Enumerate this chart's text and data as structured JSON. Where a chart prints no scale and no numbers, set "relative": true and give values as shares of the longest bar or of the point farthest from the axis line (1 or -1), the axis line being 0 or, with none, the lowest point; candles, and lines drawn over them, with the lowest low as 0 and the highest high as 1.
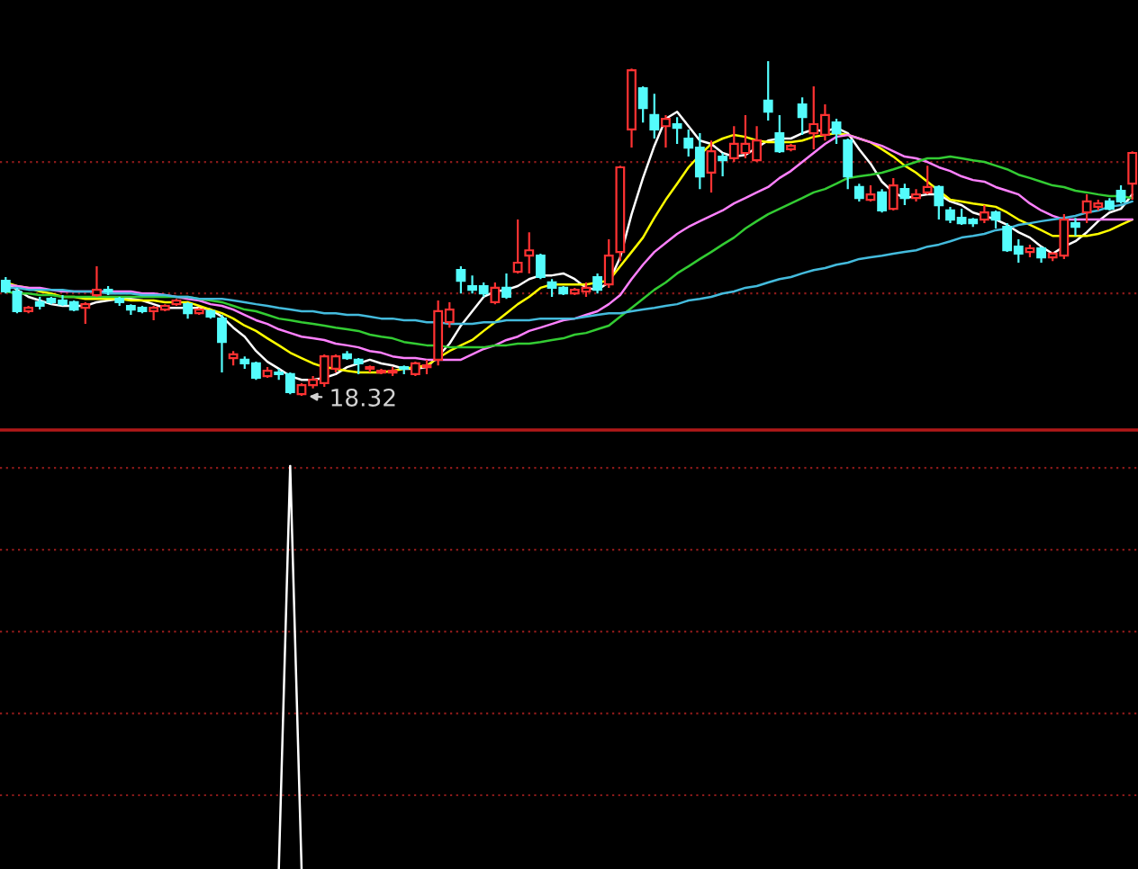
{
  "chart_data": [
    {
      "type": "candlestick",
      "relative": true,
      "categories": [
        null,
        null,
        null,
        null,
        null,
        null,
        null,
        null,
        null,
        null,
        null,
        null,
        null,
        null,
        null,
        null,
        null,
        null,
        null,
        null,
        null,
        null,
        null,
        null,
        null,
        null,
        null,
        null,
        null,
        null,
        null,
        null,
        null,
        null,
        null,
        null,
        null,
        null,
        null,
        null,
        null,
        null,
        null,
        null,
        null,
        null,
        null,
        null,
        null,
        null,
        null,
        null,
        null,
        null,
        null,
        null,
        null,
        null,
        null,
        null,
        null,
        null,
        null,
        null,
        null,
        null,
        null,
        null,
        null,
        null,
        null,
        null,
        null,
        null,
        null,
        null,
        null,
        null,
        null,
        null,
        null,
        null,
        null,
        null,
        null,
        null,
        null,
        null,
        null,
        null,
        null,
        null,
        null,
        null,
        null,
        null,
        null,
        null,
        null,
        null
      ],
      "ohlc": [
        [
          0.344,
          0.355,
          0.306,
          0.312
        ],
        [
          0.312,
          0.323,
          0.247,
          0.253
        ],
        [
          0.253,
          0.269,
          0.247,
          0.263
        ],
        [
          0.28,
          0.296,
          0.258,
          0.269
        ],
        [
          0.29,
          0.296,
          0.274,
          0.28
        ],
        [
          0.285,
          0.301,
          0.269,
          0.274
        ],
        [
          0.28,
          0.285,
          0.253,
          0.258
        ],
        [
          0.263,
          0.28,
          0.215,
          0.274
        ],
        [
          0.301,
          0.387,
          0.296,
          0.317
        ],
        [
          0.317,
          0.328,
          0.301,
          0.312
        ],
        [
          0.29,
          0.296,
          0.269,
          0.28
        ],
        [
          0.269,
          0.274,
          0.242,
          0.258
        ],
        [
          0.263,
          0.269,
          0.247,
          0.253
        ],
        [
          0.253,
          0.269,
          0.226,
          0.263
        ],
        [
          0.258,
          0.274,
          0.253,
          0.269
        ],
        [
          0.274,
          0.29,
          0.269,
          0.285
        ],
        [
          0.274,
          0.28,
          0.231,
          0.247
        ],
        [
          0.247,
          0.263,
          0.242,
          0.258
        ],
        [
          0.253,
          0.258,
          0.231,
          0.237
        ],
        [
          0.231,
          0.242,
          0.07,
          0.161
        ],
        [
          0.113,
          0.134,
          0.091,
          0.124
        ],
        [
          0.108,
          0.118,
          0.081,
          0.097
        ],
        [
          0.097,
          0.102,
          0.048,
          0.054
        ],
        [
          0.059,
          0.086,
          0.054,
          0.075
        ],
        [
          0.07,
          0.081,
          0.048,
          0.065
        ],
        [
          0.065,
          0.07,
          0.005,
          0.011
        ],
        [
          0.005,
          0.038,
          0,
          0.032
        ],
        [
          0.032,
          0.059,
          0.022,
          0.048
        ],
        [
          0.038,
          0.124,
          0.027,
          0.118
        ],
        [
          0.081,
          0.124,
          0.07,
          0.118
        ],
        [
          0.124,
          0.134,
          0.108,
          0.113
        ],
        [
          0.108,
          0.113,
          0.065,
          0.097
        ],
        [
          0.081,
          0.091,
          0.07,
          0.086
        ],
        [
          0.07,
          0.081,
          0.065,
          0.075
        ],
        [
          0.07,
          0.086,
          0.059,
          0.075
        ],
        [
          0.086,
          0.091,
          0.065,
          0.081
        ],
        [
          0.065,
          0.102,
          0.059,
          0.097
        ],
        [
          0.086,
          0.108,
          0.065,
          0.091
        ],
        [
          0.108,
          0.285,
          0.091,
          0.253
        ],
        [
          0.22,
          0.28,
          0.204,
          0.258
        ],
        [
          0.376,
          0.387,
          0.306,
          0.344
        ],
        [
          0.328,
          0.36,
          0.306,
          0.317
        ],
        [
          0.328,
          0.339,
          0.296,
          0.306
        ],
        [
          0.28,
          0.339,
          0.274,
          0.323
        ],
        [
          0.323,
          0.366,
          0.29,
          0.296
        ],
        [
          0.371,
          0.527,
          0.366,
          0.398
        ],
        [
          0.419,
          0.489,
          0.366,
          0.435
        ],
        [
          0.419,
          0.425,
          0.349,
          0.355
        ],
        [
          0.339,
          0.349,
          0.296,
          0.323
        ],
        [
          0.323,
          0.328,
          0.301,
          0.306
        ],
        [
          0.306,
          0.323,
          0.301,
          0.317
        ],
        [
          0.312,
          0.339,
          0.296,
          0.323
        ],
        [
          0.355,
          0.366,
          0.306,
          0.317
        ],
        [
          0.333,
          0.468,
          0.323,
          0.419
        ],
        [
          0.43,
          0.688,
          0.403,
          0.683
        ],
        [
          0.796,
          0.978,
          0.742,
          0.973
        ],
        [
          0.919,
          0.925,
          0.817,
          0.86
        ],
        [
          0.839,
          0.903,
          0.769,
          0.796
        ],
        [
          0.806,
          0.839,
          0.742,
          0.828
        ],
        [
          0.812,
          0.833,
          0.753,
          0.801
        ],
        [
          0.769,
          0.796,
          0.715,
          0.742
        ],
        [
          0.742,
          0.785,
          0.618,
          0.656
        ],
        [
          0.667,
          0.763,
          0.608,
          0.731
        ],
        [
          0.715,
          0.726,
          0.656,
          0.704
        ],
        [
          0.71,
          0.806,
          0.699,
          0.753
        ],
        [
          0.726,
          0.839,
          0.71,
          0.753
        ],
        [
          0.704,
          0.806,
          0.699,
          0.763
        ],
        [
          0.882,
          1,
          0.823,
          0.849
        ],
        [
          0.785,
          0.839,
          0.726,
          0.731
        ],
        [
          0.737,
          0.753,
          0.731,
          0.747
        ],
        [
          0.871,
          0.892,
          0.78,
          0.833
        ],
        [
          0.785,
          0.925,
          0.737,
          0.812
        ],
        [
          0.78,
          0.871,
          0.763,
          0.839
        ],
        [
          0.817,
          0.828,
          0.753,
          0.785
        ],
        [
          0.763,
          0.769,
          0.618,
          0.656
        ],
        [
          0.624,
          0.634,
          0.581,
          0.591
        ],
        [
          0.586,
          0.629,
          0.581,
          0.602
        ],
        [
          0.608,
          0.618,
          0.548,
          0.554
        ],
        [
          0.559,
          0.651,
          0.554,
          0.629
        ],
        [
          0.618,
          0.634,
          0.57,
          0.591
        ],
        [
          0.591,
          0.618,
          0.581,
          0.602
        ],
        [
          0.608,
          0.688,
          0.602,
          0.624
        ],
        [
          0.624,
          0.629,
          0.527,
          0.57
        ],
        [
          0.554,
          0.565,
          0.516,
          0.527
        ],
        [
          0.532,
          0.559,
          0.511,
          0.516
        ],
        [
          0.527,
          0.532,
          0.505,
          0.516
        ],
        [
          0.527,
          0.57,
          0.516,
          0.548
        ],
        [
          0.548,
          0.554,
          0.5,
          0.527
        ],
        [
          0.505,
          0.516,
          0.43,
          0.435
        ],
        [
          0.446,
          0.468,
          0.398,
          0.425
        ],
        [
          0.43,
          0.452,
          0.414,
          0.441
        ],
        [
          0.441,
          0.446,
          0.398,
          0.414
        ],
        [
          0.414,
          0.43,
          0.403,
          0.425
        ],
        [
          0.419,
          0.543,
          0.409,
          0.527
        ],
        [
          0.516,
          0.532,
          0.478,
          0.505
        ],
        [
          0.548,
          0.602,
          0.516,
          0.581
        ],
        [
          0.565,
          0.586,
          0.554,
          0.575
        ],
        [
          0.581,
          0.591,
          0.554,
          0.559
        ],
        [
          0.613,
          0.629,
          0.575,
          0.581
        ],
        [
          0.634,
          0.731,
          0.586,
          0.726
        ]
      ],
      "colors": [
        "#54fcfc",
        "#54fcfc",
        "#ff3232",
        "#54fcfc",
        "#54fcfc",
        "#54fcfc",
        "#54fcfc",
        "#ff3232",
        "#ff3232",
        "#54fcfc",
        "#54fcfc",
        "#54fcfc",
        "#54fcfc",
        "#ff3232",
        "#ff3232",
        "#ff3232",
        "#54fcfc",
        "#ff3232",
        "#54fcfc",
        "#54fcfc",
        "#ff3232",
        "#54fcfc",
        "#54fcfc",
        "#ff3232",
        "#54fcfc",
        "#54fcfc",
        "#ff3232",
        "#ff3232",
        "#ff3232",
        "#ff3232",
        "#54fcfc",
        "#54fcfc",
        "#ff3232",
        "#ff3232",
        "#ff3232",
        "#54fcfc",
        "#ff3232",
        "#ff3232",
        "#ff3232",
        "#ff3232",
        "#54fcfc",
        "#54fcfc",
        "#54fcfc",
        "#ff3232",
        "#54fcfc",
        "#ff3232",
        "#ff3232",
        "#54fcfc",
        "#54fcfc",
        "#54fcfc",
        "#ff3232",
        "#ff3232",
        "#54fcfc",
        "#ff3232",
        "#ff3232",
        "#ff3232",
        "#54fcfc",
        "#54fcfc",
        "#ff3232",
        "#54fcfc",
        "#54fcfc",
        "#54fcfc",
        "#ff3232",
        "#54fcfc",
        "#ff3232",
        "#ff3232",
        "#ff3232",
        "#54fcfc",
        "#54fcfc",
        "#ff3232",
        "#54fcfc",
        "#ff3232",
        "#ff3232",
        "#54fcfc",
        "#54fcfc",
        "#54fcfc",
        "#ff3232",
        "#54fcfc",
        "#ff3232",
        "#54fcfc",
        "#ff3232",
        "#ff3232",
        "#54fcfc",
        "#54fcfc",
        "#54fcfc",
        "#54fcfc",
        "#ff3232",
        "#54fcfc",
        "#54fcfc",
        "#54fcfc",
        "#ff3232",
        "#54fcfc",
        "#ff3232",
        "#ff3232",
        "#54fcfc",
        "#ff3232",
        "#ff3232",
        "#54fcfc",
        "#54fcfc",
        "#ff3232"
      ],
      "series": [
        {
          "type": "line",
          "color": "#ffffff",
          "values": [
            0.339,
            0.317,
            0.296,
            0.285,
            0.274,
            0.269,
            0.269,
            0.269,
            0.28,
            0.285,
            0.29,
            0.29,
            0.285,
            0.274,
            0.263,
            0.263,
            0.263,
            0.263,
            0.258,
            0.237,
            0.204,
            0.177,
            0.134,
            0.102,
            0.081,
            0.059,
            0.048,
            0.048,
            0.054,
            0.065,
            0.086,
            0.097,
            0.108,
            0.097,
            0.091,
            0.081,
            0.081,
            0.086,
            0.118,
            0.156,
            0.21,
            0.253,
            0.296,
            0.312,
            0.317,
            0.328,
            0.349,
            0.36,
            0.36,
            0.366,
            0.349,
            0.323,
            0.317,
            0.339,
            0.414,
            0.543,
            0.651,
            0.747,
            0.828,
            0.849,
            0.806,
            0.763,
            0.753,
            0.726,
            0.715,
            0.72,
            0.742,
            0.763,
            0.769,
            0.769,
            0.785,
            0.796,
            0.79,
            0.801,
            0.785,
            0.737,
            0.694,
            0.64,
            0.608,
            0.591,
            0.597,
            0.602,
            0.602,
            0.581,
            0.57,
            0.548,
            0.538,
            0.527,
            0.511,
            0.489,
            0.473,
            0.446,
            0.425,
            0.446,
            0.462,
            0.489,
            0.522,
            0.548,
            0.559,
            0.602
          ]
        },
        {
          "type": "line",
          "color": "#ffff00",
          "values": [
            0.339,
            0.328,
            0.323,
            0.312,
            0.306,
            0.296,
            0.296,
            0.29,
            0.29,
            0.29,
            0.29,
            0.285,
            0.285,
            0.285,
            0.28,
            0.28,
            0.28,
            0.269,
            0.258,
            0.247,
            0.231,
            0.21,
            0.194,
            0.172,
            0.151,
            0.129,
            0.113,
            0.097,
            0.086,
            0.081,
            0.075,
            0.07,
            0.07,
            0.07,
            0.075,
            0.081,
            0.086,
            0.091,
            0.113,
            0.134,
            0.151,
            0.167,
            0.194,
            0.22,
            0.247,
            0.274,
            0.296,
            0.323,
            0.333,
            0.333,
            0.333,
            0.333,
            0.339,
            0.344,
            0.387,
            0.43,
            0.473,
            0.532,
            0.586,
            0.634,
            0.683,
            0.72,
            0.753,
            0.769,
            0.78,
            0.774,
            0.763,
            0.758,
            0.758,
            0.758,
            0.763,
            0.774,
            0.78,
            0.785,
            0.78,
            0.769,
            0.758,
            0.737,
            0.715,
            0.688,
            0.667,
            0.64,
            0.613,
            0.586,
            0.581,
            0.575,
            0.57,
            0.565,
            0.548,
            0.527,
            0.511,
            0.495,
            0.478,
            0.478,
            0.478,
            0.478,
            0.484,
            0.495,
            0.511,
            0.527
          ]
        },
        {
          "type": "line",
          "color": "#ff80ff",
          "values": [
            0.333,
            0.328,
            0.323,
            0.323,
            0.317,
            0.312,
            0.312,
            0.312,
            0.312,
            0.312,
            0.312,
            0.312,
            0.306,
            0.306,
            0.301,
            0.296,
            0.29,
            0.285,
            0.274,
            0.269,
            0.258,
            0.242,
            0.226,
            0.215,
            0.199,
            0.188,
            0.177,
            0.172,
            0.167,
            0.156,
            0.151,
            0.145,
            0.134,
            0.129,
            0.118,
            0.113,
            0.113,
            0.108,
            0.108,
            0.108,
            0.108,
            0.124,
            0.14,
            0.151,
            0.167,
            0.177,
            0.194,
            0.204,
            0.215,
            0.226,
            0.231,
            0.242,
            0.253,
            0.274,
            0.301,
            0.349,
            0.392,
            0.43,
            0.457,
            0.484,
            0.505,
            0.522,
            0.538,
            0.554,
            0.575,
            0.591,
            0.608,
            0.624,
            0.651,
            0.672,
            0.699,
            0.726,
            0.753,
            0.774,
            0.78,
            0.769,
            0.758,
            0.747,
            0.731,
            0.715,
            0.71,
            0.699,
            0.683,
            0.672,
            0.656,
            0.645,
            0.64,
            0.624,
            0.613,
            0.602,
            0.575,
            0.554,
            0.538,
            0.527,
            0.527,
            0.527,
            0.527,
            0.527,
            0.527,
            0.527
          ]
        },
        {
          "type": "line",
          "color": "#33cc33",
          "values": [
            0.312,
            0.306,
            0.306,
            0.301,
            0.301,
            0.296,
            0.296,
            0.296,
            0.296,
            0.296,
            0.296,
            0.296,
            0.296,
            0.296,
            0.296,
            0.296,
            0.296,
            0.29,
            0.285,
            0.28,
            0.269,
            0.258,
            0.253,
            0.242,
            0.231,
            0.226,
            0.22,
            0.215,
            0.21,
            0.204,
            0.199,
            0.194,
            0.183,
            0.177,
            0.172,
            0.161,
            0.156,
            0.151,
            0.151,
            0.145,
            0.145,
            0.145,
            0.145,
            0.151,
            0.151,
            0.156,
            0.156,
            0.161,
            0.167,
            0.172,
            0.183,
            0.188,
            0.199,
            0.21,
            0.237,
            0.263,
            0.29,
            0.317,
            0.339,
            0.366,
            0.387,
            0.409,
            0.43,
            0.452,
            0.473,
            0.5,
            0.522,
            0.543,
            0.559,
            0.575,
            0.591,
            0.608,
            0.618,
            0.634,
            0.651,
            0.656,
            0.661,
            0.667,
            0.677,
            0.688,
            0.699,
            0.71,
            0.71,
            0.715,
            0.71,
            0.704,
            0.699,
            0.688,
            0.677,
            0.661,
            0.651,
            0.64,
            0.629,
            0.624,
            0.613,
            0.608,
            0.602,
            0.597,
            0.597,
            0.591
          ]
        },
        {
          "type": "line",
          "color": "#44bbdd",
          "values": [
            0.323,
            0.323,
            0.317,
            0.317,
            0.317,
            0.317,
            0.312,
            0.312,
            0.312,
            0.306,
            0.306,
            0.306,
            0.301,
            0.301,
            0.301,
            0.296,
            0.296,
            0.29,
            0.29,
            0.29,
            0.285,
            0.28,
            0.274,
            0.269,
            0.263,
            0.258,
            0.253,
            0.253,
            0.247,
            0.247,
            0.242,
            0.242,
            0.237,
            0.231,
            0.231,
            0.226,
            0.226,
            0.22,
            0.22,
            0.215,
            0.215,
            0.215,
            0.22,
            0.22,
            0.226,
            0.226,
            0.226,
            0.231,
            0.231,
            0.231,
            0.231,
            0.237,
            0.242,
            0.247,
            0.247,
            0.253,
            0.258,
            0.263,
            0.269,
            0.274,
            0.285,
            0.29,
            0.296,
            0.306,
            0.312,
            0.323,
            0.328,
            0.339,
            0.349,
            0.355,
            0.366,
            0.376,
            0.382,
            0.392,
            0.398,
            0.409,
            0.414,
            0.419,
            0.425,
            0.43,
            0.435,
            0.446,
            0.452,
            0.462,
            0.473,
            0.478,
            0.484,
            0.495,
            0.5,
            0.511,
            0.516,
            0.522,
            0.527,
            0.532,
            0.538,
            0.548,
            0.554,
            0.565,
            0.57,
            0.581
          ]
        }
      ],
      "ref_lines": [
        {
          "axis": "y",
          "value": 0.306,
          "color": "#8c1a1a",
          "line_style": "dotted"
        },
        {
          "axis": "y",
          "value": 0.699,
          "color": "#8c1a1a",
          "line_style": "dotted"
        }
      ],
      "annotations": [
        "18.32"
      ]
    },
    {
      "type": "line",
      "relative": true,
      "categories": [
        null,
        null,
        null,
        null,
        null,
        null,
        null,
        null,
        null,
        null,
        null,
        null,
        null,
        null,
        null,
        null,
        null,
        null,
        null,
        null,
        null,
        null,
        null,
        null,
        null,
        null,
        null,
        null,
        null,
        null,
        null,
        null,
        null,
        null,
        null,
        null,
        null,
        null,
        null,
        null,
        null,
        null,
        null,
        null,
        null,
        null,
        null,
        null,
        null,
        null,
        null,
        null,
        null,
        null,
        null,
        null,
        null,
        null,
        null,
        null,
        null,
        null,
        null,
        null,
        null,
        null,
        null,
        null,
        null,
        null,
        null,
        null,
        null,
        null,
        null,
        null,
        null,
        null,
        null,
        null,
        null,
        null,
        null,
        null,
        null,
        null,
        null,
        null,
        null,
        null,
        null,
        null,
        null,
        null,
        null,
        null,
        null,
        null,
        null,
        null
      ],
      "series": [
        {
          "color": "#ffffff",
          "values": [
            null,
            null,
            null,
            null,
            null,
            null,
            null,
            null,
            null,
            null,
            null,
            null,
            null,
            null,
            null,
            null,
            null,
            null,
            null,
            null,
            null,
            null,
            null,
            null,
            0,
            1,
            0,
            null,
            null,
            null,
            null,
            null,
            null,
            null,
            null,
            null,
            null,
            null,
            null,
            null,
            null,
            null,
            null,
            null,
            null,
            null,
            null,
            null,
            null,
            null,
            null,
            null,
            null,
            null,
            null,
            null,
            null,
            null,
            null,
            null,
            null,
            null,
            null,
            null,
            null,
            null,
            null,
            null,
            null,
            null,
            null,
            null,
            null,
            null,
            null,
            null,
            null,
            null,
            null,
            null,
            null,
            null,
            null,
            null,
            null,
            null,
            null,
            null,
            null,
            null,
            null,
            null,
            null,
            null,
            null,
            null,
            null,
            null,
            null,
            null
          ]
        }
      ],
      "ref_lines": [
        {
          "axis": "y",
          "value": 0.183,
          "color": "#8c1a1a",
          "line_style": "dotted"
        },
        {
          "axis": "y",
          "value": 0.386,
          "color": "#8c1a1a",
          "line_style": "dotted"
        },
        {
          "axis": "y",
          "value": 0.589,
          "color": "#8c1a1a",
          "line_style": "dotted"
        },
        {
          "axis": "y",
          "value": 0.792,
          "color": "#8c1a1a",
          "line_style": "dotted"
        },
        {
          "axis": "y",
          "value": 0.995,
          "color": "#8c1a1a",
          "line_style": "dotted"
        }
      ]
    }
  ]
}
